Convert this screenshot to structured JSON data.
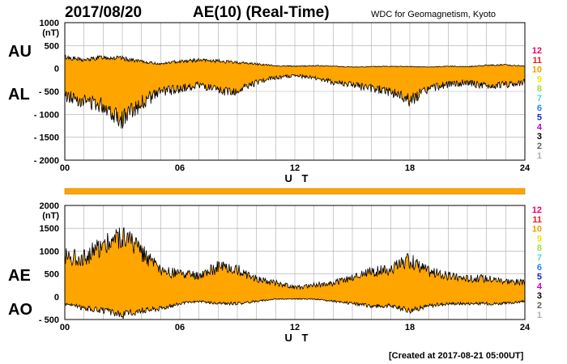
{
  "header": {
    "date": "2017/08/20",
    "title": "AE(10) (Real-Time)",
    "source": "WDC for Geomagnetism, Kyoto"
  },
  "footer": {
    "created": "[Created at 2017-08-21 05:00UT]"
  },
  "colors": {
    "fill": "#ffa500",
    "line": "#000000",
    "grid": "#aaaaaa"
  },
  "station_scale": {
    "labels": [
      "12",
      "11",
      "10",
      "9",
      "8",
      "7",
      "6",
      "5",
      "4",
      "3",
      "2",
      "1"
    ],
    "colors": [
      "#e8006e",
      "#e02020",
      "#f0a000",
      "#e8e800",
      "#a0e040",
      "#40e0e0",
      "#2080ff",
      "#2020c0",
      "#c000c0",
      "#000000",
      "#606060",
      "#b0b0b0"
    ]
  },
  "chart_data": [
    {
      "type": "area",
      "series_labels": [
        "AU",
        "AL"
      ],
      "unit": "(nT)",
      "ylim": [
        -2000,
        1000
      ],
      "yticks": [
        1000,
        500,
        0,
        -500,
        -1000,
        -1500,
        -2000
      ],
      "ytick_labels": [
        "1000",
        "500",
        "0",
        "- 500",
        "- 1000",
        "- 1500",
        "- 2000"
      ],
      "xlim": [
        0,
        24
      ],
      "xticks": [
        0,
        6,
        12,
        18,
        24
      ],
      "xtick_labels": [
        "00",
        "06",
        "12",
        "18",
        "24"
      ],
      "xlabel": "U T",
      "grid": true,
      "x": [
        0,
        1,
        2,
        3,
        4,
        5,
        6,
        7,
        8,
        9,
        10,
        11,
        12,
        13,
        14,
        15,
        16,
        17,
        18,
        19,
        20,
        21,
        22,
        23,
        24
      ],
      "series": [
        {
          "values": [
            250,
            180,
            250,
            220,
            150,
            100,
            160,
            180,
            160,
            130,
            100,
            60,
            50,
            60,
            50,
            30,
            40,
            50,
            40,
            30,
            50,
            40,
            70,
            80,
            50
          ]
        },
        {
          "values": [
            -600,
            -700,
            -800,
            -1100,
            -750,
            -500,
            -450,
            -350,
            -500,
            -500,
            -300,
            -200,
            -160,
            -200,
            -300,
            -350,
            -450,
            -500,
            -700,
            -450,
            -350,
            -300,
            -400,
            -350,
            -300
          ]
        }
      ]
    },
    {
      "type": "area",
      "series_labels": [
        "AE",
        "AO"
      ],
      "unit": "(nT)",
      "ylim": [
        -500,
        2000
      ],
      "yticks": [
        2000,
        1500,
        1000,
        500,
        0,
        -500
      ],
      "ytick_labels": [
        "2000",
        "1500",
        "1000",
        "500",
        "0",
        "- 500"
      ],
      "xlim": [
        0,
        24
      ],
      "xticks": [
        0,
        6,
        12,
        18,
        24
      ],
      "xtick_labels": [
        "00",
        "06",
        "12",
        "18",
        "24"
      ],
      "xlabel": "U T",
      "grid": true,
      "x": [
        0,
        1,
        2,
        3,
        4,
        5,
        6,
        7,
        8,
        9,
        10,
        11,
        12,
        13,
        14,
        15,
        16,
        17,
        18,
        19,
        20,
        21,
        22,
        23,
        24
      ],
      "series": [
        {
          "values": [
            900,
            850,
            1150,
            1350,
            1000,
            550,
            500,
            450,
            650,
            600,
            400,
            300,
            200,
            250,
            300,
            400,
            550,
            600,
            800,
            550,
            450,
            400,
            400,
            350,
            300
          ]
        },
        {
          "values": [
            -150,
            -250,
            -300,
            -400,
            -300,
            -250,
            -150,
            -100,
            -150,
            -150,
            -100,
            -50,
            -50,
            -50,
            -100,
            -150,
            -200,
            -200,
            -300,
            -200,
            -150,
            -150,
            -150,
            -150,
            -100
          ]
        }
      ]
    }
  ]
}
